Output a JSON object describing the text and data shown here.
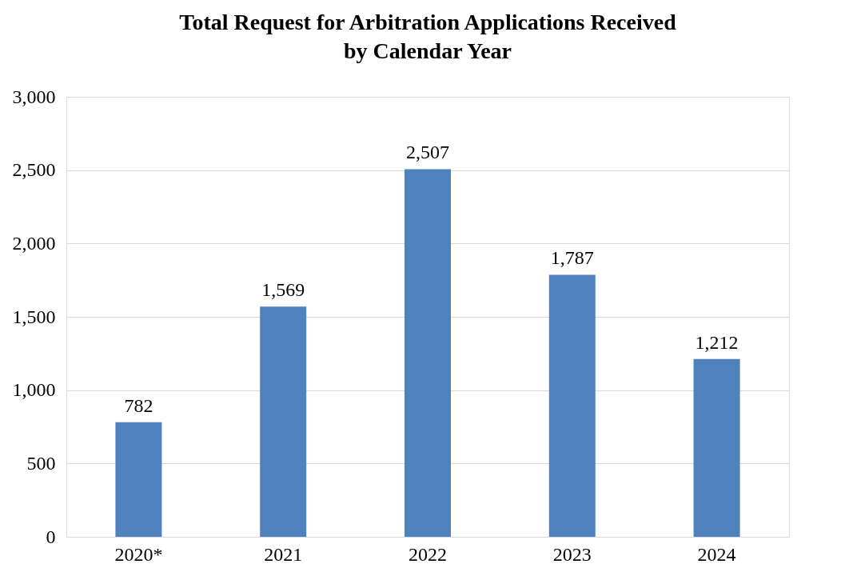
{
  "chart_data": {
    "type": "bar",
    "title": [
      "Total Request for Arbitration Applications Received",
      "by Calendar Year"
    ],
    "categories": [
      "2020*",
      "2021",
      "2022",
      "2023",
      "2024"
    ],
    "values": [
      782,
      1569,
      2507,
      1787,
      1212
    ],
    "color": "#4f81bd",
    "value_labels": [
      "782",
      "1,569",
      "2,507",
      "1,787",
      "1,212"
    ],
    "ylim": [
      0,
      3000
    ],
    "yticks": [
      0,
      500,
      {
        "value": 1000,
        "label": "1,000"
      },
      {
        "value": 1500,
        "label": "1,500"
      },
      {
        "value": 2000,
        "label": "2,000"
      },
      {
        "value": 2500,
        "label": "2,500"
      },
      {
        "value": 3000,
        "label": "3,000"
      }
    ],
    "grid": "y"
  }
}
